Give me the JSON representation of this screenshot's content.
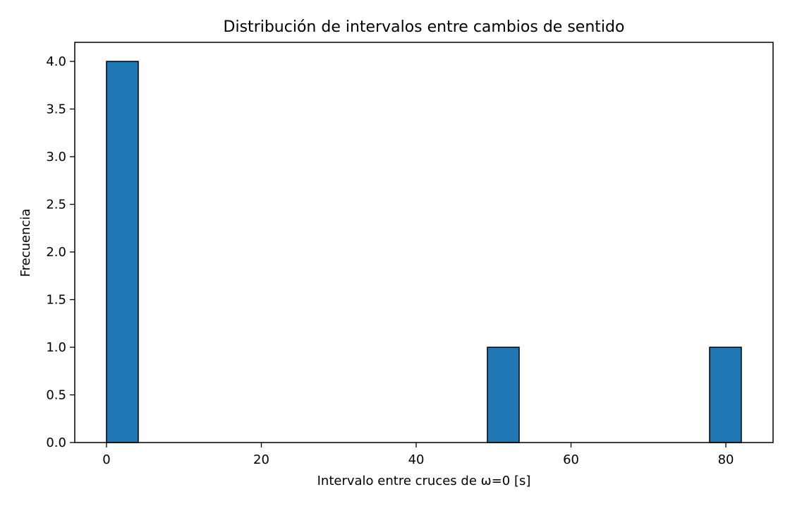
{
  "chart_data": {
    "type": "bar",
    "title": "Distribución de intervalos entre cambios de sentido",
    "xlabel": "Intervalo entre cruces de ω=0 [s]",
    "ylabel": "Frecuencia",
    "xlim": [
      -4.1,
      86.1
    ],
    "ylim": [
      0,
      4.2
    ],
    "bar_width": 4.1,
    "bins": [
      {
        "x0": 0.0,
        "x1": 4.1,
        "count": 4
      },
      {
        "x0": 49.2,
        "x1": 53.3,
        "count": 1
      },
      {
        "x0": 77.9,
        "x1": 82.0,
        "count": 1
      }
    ],
    "xticks": [
      0,
      20,
      40,
      60,
      80
    ],
    "xtick_labels": [
      "0",
      "20",
      "40",
      "60",
      "80"
    ],
    "yticks": [
      0.0,
      0.5,
      1.0,
      1.5,
      2.0,
      2.5,
      3.0,
      3.5,
      4.0
    ],
    "ytick_labels": [
      "0.0",
      "0.5",
      "1.0",
      "1.5",
      "2.0",
      "2.5",
      "3.0",
      "3.5",
      "4.0"
    ],
    "grid": false,
    "colors": {
      "bar_fill": "#1f77b4",
      "bar_edge": "#000000",
      "axis": "#000000"
    }
  }
}
